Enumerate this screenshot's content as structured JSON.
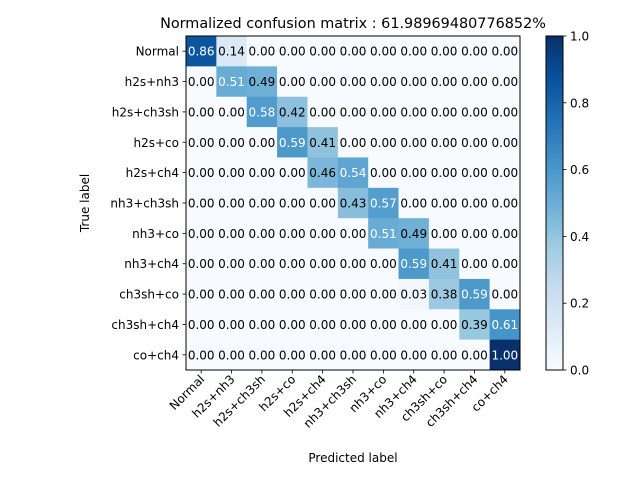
{
  "chart_data": {
    "type": "heatmap",
    "title": "Normalized confusion matrix : 61.98969480776852%",
    "xlabel": "Predicted label",
    "ylabel": "True label",
    "row_labels": [
      "Normal",
      "h2s+nh3",
      "h2s+ch3sh",
      "h2s+co",
      "h2s+ch4",
      "nh3+ch3sh",
      "nh3+co",
      "nh3+ch4",
      "ch3sh+co",
      "ch3sh+ch4",
      "co+ch4"
    ],
    "col_labels": [
      "Normal",
      "h2s+nh3",
      "h2s+ch3sh",
      "h2s+co",
      "h2s+ch4",
      "nh3+ch3sh",
      "nh3+co",
      "nh3+ch4",
      "ch3sh+co",
      "ch3sh+ch4",
      "co+ch4"
    ],
    "values": [
      [
        0.86,
        0.14,
        0.0,
        0.0,
        0.0,
        0.0,
        0.0,
        0.0,
        0.0,
        0.0,
        0.0
      ],
      [
        0.0,
        0.51,
        0.49,
        0.0,
        0.0,
        0.0,
        0.0,
        0.0,
        0.0,
        0.0,
        0.0
      ],
      [
        0.0,
        0.0,
        0.58,
        0.42,
        0.0,
        0.0,
        0.0,
        0.0,
        0.0,
        0.0,
        0.0
      ],
      [
        0.0,
        0.0,
        0.0,
        0.59,
        0.41,
        0.0,
        0.0,
        0.0,
        0.0,
        0.0,
        0.0
      ],
      [
        0.0,
        0.0,
        0.0,
        0.0,
        0.46,
        0.54,
        0.0,
        0.0,
        0.0,
        0.0,
        0.0
      ],
      [
        0.0,
        0.0,
        0.0,
        0.0,
        0.0,
        0.43,
        0.57,
        0.0,
        0.0,
        0.0,
        0.0
      ],
      [
        0.0,
        0.0,
        0.0,
        0.0,
        0.0,
        0.0,
        0.51,
        0.49,
        0.0,
        0.0,
        0.0
      ],
      [
        0.0,
        0.0,
        0.0,
        0.0,
        0.0,
        0.0,
        0.0,
        0.59,
        0.41,
        0.0,
        0.0
      ],
      [
        0.0,
        0.0,
        0.0,
        0.0,
        0.0,
        0.0,
        0.0,
        0.03,
        0.38,
        0.59,
        0.0
      ],
      [
        0.0,
        0.0,
        0.0,
        0.0,
        0.0,
        0.0,
        0.0,
        0.0,
        0.0,
        0.39,
        0.61
      ],
      [
        0.0,
        0.0,
        0.0,
        0.0,
        0.0,
        0.0,
        0.0,
        0.0,
        0.0,
        0.0,
        1.0
      ]
    ],
    "value_format": "2 decimals",
    "colormap": "Blues",
    "colorbar": {
      "range": [
        0.0,
        1.0
      ],
      "ticks": [
        "0.0",
        "0.2",
        "0.4",
        "0.6",
        "0.8",
        "1.0"
      ]
    },
    "grid": false
  }
}
